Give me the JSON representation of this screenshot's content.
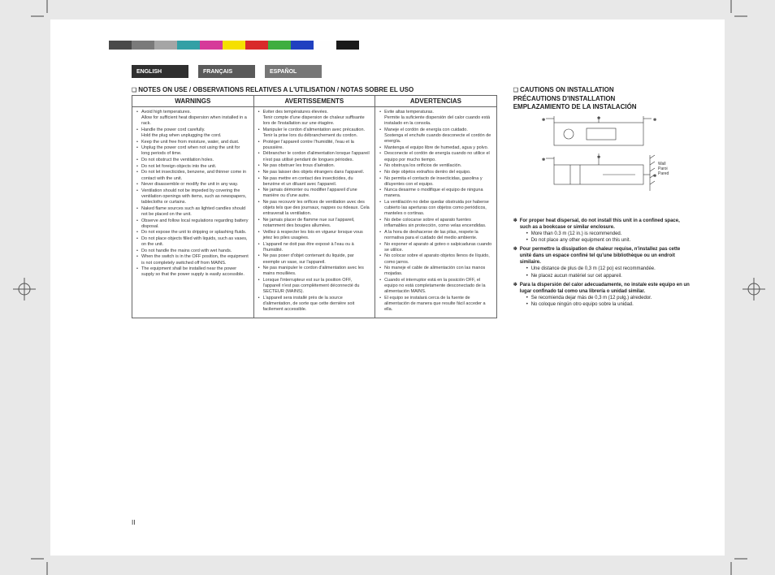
{
  "crop_stroke": "#555555",
  "colorbar": [
    "#4a4a4a",
    "#7a7a7a",
    "#a5a5a5",
    "#33a0a5",
    "#d63a9a",
    "#f5e000",
    "#d92a2a",
    "#3fae3f",
    "#2040c0",
    "#fefefe",
    "#1a1a1a"
  ],
  "tabs": [
    {
      "label": "ENGLISH",
      "cls": "dark"
    },
    {
      "label": "FRANÇAIS",
      "cls": "mid"
    },
    {
      "label": "ESPAÑOL",
      "cls": "lite"
    }
  ],
  "notes_heading": "NOTES ON USE / OBSERVATIONS RELATIVES A L'UTILISATION / NOTAS SOBRE EL USO",
  "table_headers": [
    "WARNINGS",
    "AVERTISSEMENTS",
    "ADVERTENCIAS"
  ],
  "col_en": [
    "Avoid high temperatures.\nAllow for sufficient heat dispersion when installed in a rack.",
    "Handle the power cord carefully.\nHold the plug when unplugging the cord.",
    "Keep the unit free from moisture, water, and dust.",
    "Unplug the power cord when not using the unit for long periods of time.",
    "Do not obstruct the ventilation holes.",
    "Do not let foreign objects into the unit.",
    "Do not let insecticides, benzene, and thinner come in contact with the unit.",
    "Never disassemble or modify the unit in any way.",
    "Ventilation should not be impeded by covering the ventilation openings with items, such as newspapers, tablecloths or curtains.",
    "Naked flame sources such as lighted candles should not be placed on the unit.",
    "Observe and follow local regulations regarding battery disposal.",
    "Do not expose the unit to dripping or splashing fluids.",
    "Do not place objects filled with liquids, such as vases, on the unit.",
    "Do not handle the mains cord with wet hands.",
    "When the switch is in the OFF position, the equipment is not completely switched off from MAINS.",
    "The equipment shall be installed near the power supply so that the power supply is easily accessible."
  ],
  "col_fr": [
    "Eviter des températures élevées.\nTenir compte d'une dispersion de chaleur suffisante lors de l'installation sur une étagère.",
    "Manipuler le cordon d'alimentation avec précaution.\nTenir la prise lors du débranchement du cordon.",
    "Protéger l'appareil contre l'humidité, l'eau et la poussière.",
    "Débrancher le cordon d'alimentation lorsque l'appareil n'est pas utilisé pendant de longues périodes.",
    "Ne pas obstruer les trous d'aération.",
    "Ne pas laisser des objets étrangers dans l'appareil.",
    "Ne pas mettre en contact des insecticides, du benzène et un diluant avec l'appareil.",
    "Ne jamais démonter ou modifier l'appareil d'une manière ou d'une autre.",
    "Ne pas recouvrir les orifices de ventilation avec des objets tels que des journaux, nappes ou rideaux. Cela entraverait la ventilation.",
    "Ne jamais placer de flamme nue sur l'appareil, notamment des bougies allumées.",
    "Veillez à respecter les lois en vigueur lorsque vous jetez les piles usagées.",
    "L'appareil ne doit pas être exposé à l'eau ou à l'humidité.",
    "Ne pas poser d'objet contenant du liquide, par exemple un vase, sur l'appareil.",
    "Ne pas manipuler le cordon d'alimentation avec les mains mouillées.",
    "Lorsque l'interrupteur est sur la position OFF, l'appareil n'est pas complètement déconnecté du SECTEUR (MAINS).",
    "L'appareil sera installé près de la source d'alimentation, de sorte que cette dernière soit facilement accessible."
  ],
  "col_es": [
    "Evite altas temperaturas.\nPermite la suficiente dispersión del calor cuando está instalado en la consola.",
    "Maneje el cordón de energía con cuidado.\nSostenga el enchufe cuando desconecte el cordón de energía.",
    "Mantenga el equipo libre de humedad, agua y polvo.",
    "Desconecte el cordón de energía cuando no utilice el equipo por mucho tiempo.",
    "No obstruya los orificios de ventilación.",
    "No deje objetos extraños dentro del equipo.",
    "No permita el contacto de insecticidas, gasolina y diluyentes con el equipo.",
    "Nunca desarme o modifique el equipo de ninguna manera.",
    "La ventilación no debe quedar obstruida por haberse cubierto las aperturas con objetos como periódicos, manteles o cortinas.",
    "No debe colocarse sobre el aparato fuentes inflamables sin protección, como velas encendidas.",
    "A la hora de deshacerse de las pilas, respete la normativa para el cuidado del medio ambiente.",
    "No exponer el aparato al goteo o salpicaduras cuando se utilice.",
    "No colocar sobre el aparato objetos llenos de líquido, como jarros.",
    "No maneje el cable de alimentación con las manos mojadas.",
    "Cuando el interruptor está en la posición OFF, el equipo no está completamente desconectado de la alimentación MAINS.",
    "El equipo se instalará cerca de la fuente de alimentación de manera que resulte fácil acceder a ella."
  ],
  "cautions_heading": "CAUTIONS ON INSTALLATION\nPRÉCAUTIONS D'INSTALLATION\nEMPLAZAMIENTO DE LA INSTALACIÓN",
  "wall_label": "Wall\nParoi\nPared",
  "footnotes": [
    {
      "lead": "For proper heat dispersal, do not install this unit in a confined space, such as a bookcase or similar enclosure.",
      "subs": [
        "More than 0.3 m (12 in.) is recommended.",
        "Do not place any other equipment on this unit."
      ]
    },
    {
      "lead": "Pour permettre la dissipation de chaleur requise, n'installez pas cette unité dans un espace confiné tel qu'une bibliothèque ou un endroit similaire.",
      "subs": [
        "Une distance de plus de 0,3 m (12 po) est recommandée.",
        "Ne placez aucun matériel sur cet appareil."
      ]
    },
    {
      "lead": "Para la dispersión del calor adecuadamente, no instale este equipo en un lugar confinado tal como una librería o unidad similar.",
      "subs": [
        "Se recomienda dejar más de 0,3 m (12 pulg.) alrededor.",
        "No coloque ningún otro equipo sobre la unidad."
      ]
    }
  ],
  "page_number": "II"
}
